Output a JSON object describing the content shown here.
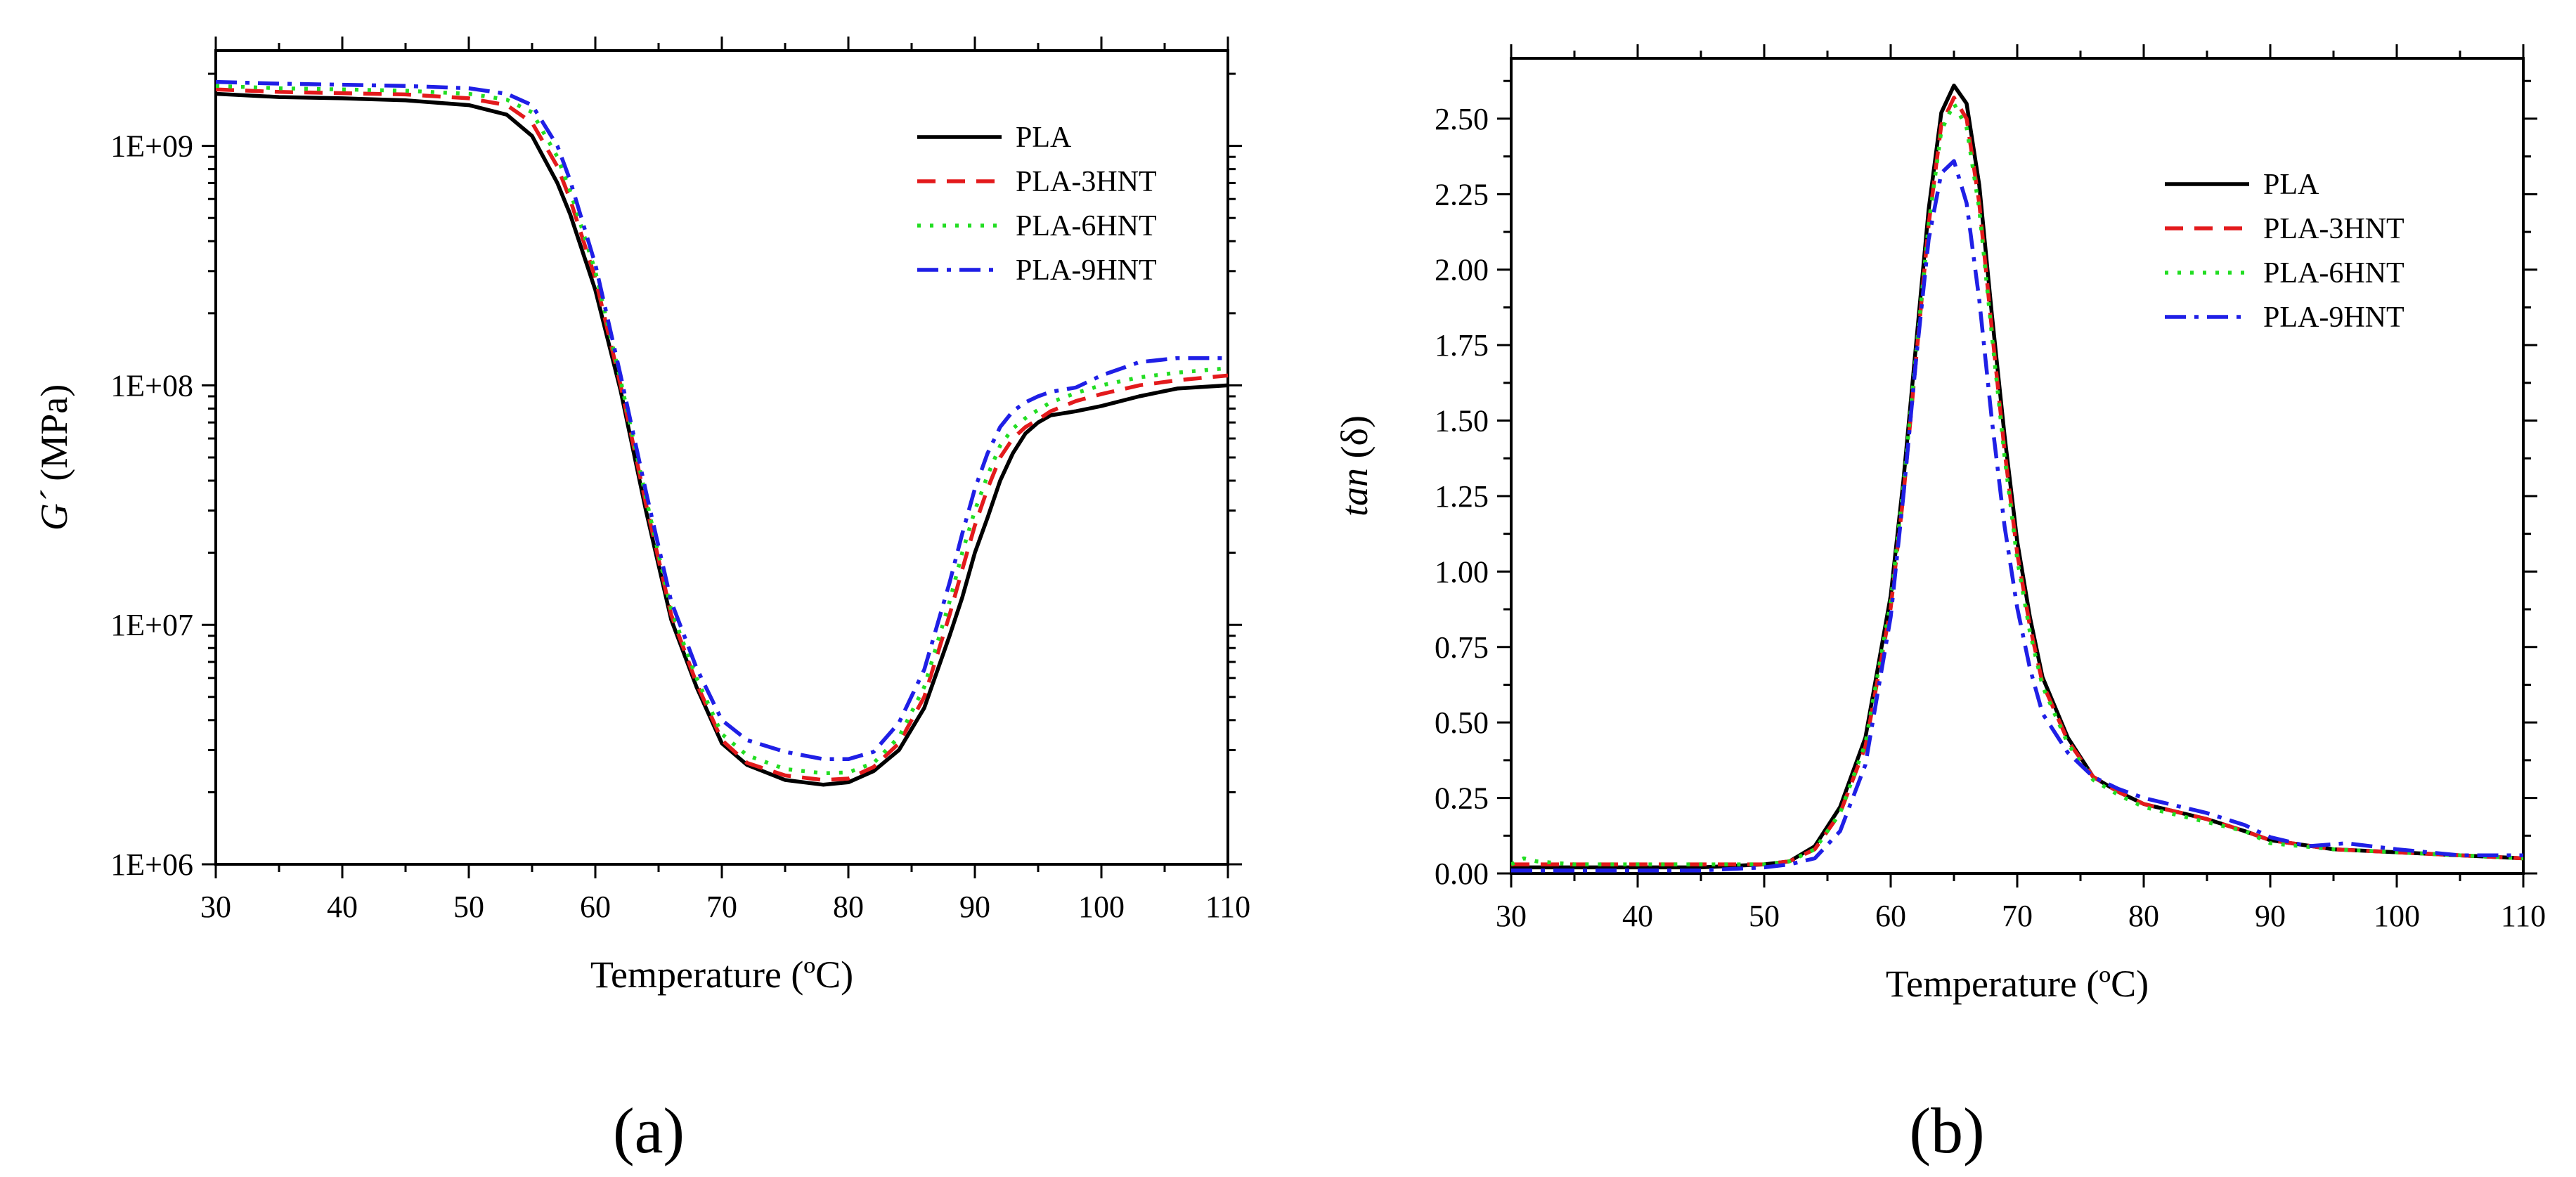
{
  "chart_data": [
    {
      "type": "line",
      "panel_label": "(a)",
      "xlabel": "Temperature (ºC)",
      "ylabel_prefix": "G´",
      "ylabel_suffix": " (MPa)",
      "yscale": "log",
      "xlim": [
        30,
        110
      ],
      "ylim": [
        1000000,
        2500000000
      ],
      "xticks": [
        30,
        40,
        50,
        60,
        70,
        80,
        90,
        100,
        110
      ],
      "yticks": [
        1000000,
        10000000,
        100000000,
        1000000000
      ],
      "ytick_labels": [
        "1E+06",
        "1E+07",
        "1E+08",
        "1E+09"
      ],
      "legend_position": "top-right",
      "series": [
        {
          "name": "PLA",
          "color": "#000000",
          "dash": "solid",
          "x": [
            30,
            35,
            40,
            45,
            50,
            53,
            55,
            57,
            58,
            60,
            62,
            64,
            66,
            68,
            70,
            72,
            75,
            78,
            80,
            82,
            84,
            86,
            88,
            89,
            90,
            91,
            92,
            93,
            94,
            95,
            96,
            98,
            100,
            103,
            106,
            110
          ],
          "y": [
            1650000000,
            1600000000,
            1580000000,
            1550000000,
            1480000000,
            1350000000,
            1100000000,
            700000000,
            520000000,
            250000000,
            95000000,
            30000000,
            10500000,
            5500000,
            3200000,
            2600000,
            2250000,
            2150000,
            2200000,
            2450000,
            3000000,
            4500000,
            9000000,
            13000000,
            20000000,
            28000000,
            40000000,
            52000000,
            63000000,
            70000000,
            75000000,
            78000000,
            82000000,
            90000000,
            97000000,
            100000000
          ]
        },
        {
          "name": "PLA-3HNT",
          "color": "#e31a1c",
          "dash": "dash",
          "x": [
            30,
            35,
            40,
            45,
            50,
            53,
            55,
            57,
            58,
            60,
            62,
            64,
            66,
            68,
            70,
            72,
            75,
            78,
            80,
            82,
            84,
            86,
            88,
            89,
            90,
            91,
            92,
            93,
            94,
            95,
            96,
            98,
            100,
            103,
            106,
            110
          ],
          "y": [
            1720000000,
            1680000000,
            1660000000,
            1640000000,
            1580000000,
            1480000000,
            1250000000,
            820000000,
            600000000,
            280000000,
            100000000,
            32000000,
            11000000,
            5700000,
            3300000,
            2650000,
            2350000,
            2250000,
            2280000,
            2550000,
            3200000,
            5000000,
            11000000,
            17000000,
            26000000,
            37000000,
            50000000,
            60000000,
            67000000,
            72000000,
            78000000,
            86000000,
            92000000,
            100000000,
            105000000,
            110000000
          ]
        },
        {
          "name": "PLA-6HNT",
          "color": "#22dd22",
          "dash": "dot",
          "x": [
            30,
            35,
            40,
            45,
            50,
            53,
            55,
            57,
            58,
            60,
            62,
            64,
            66,
            68,
            70,
            72,
            75,
            78,
            80,
            82,
            84,
            86,
            88,
            89,
            90,
            91,
            92,
            93,
            94,
            95,
            96,
            98,
            100,
            103,
            106,
            110
          ],
          "y": [
            1780000000,
            1740000000,
            1720000000,
            1700000000,
            1650000000,
            1560000000,
            1380000000,
            900000000,
            650000000,
            300000000,
            105000000,
            34000000,
            11500000,
            6000000,
            3500000,
            2850000,
            2500000,
            2400000,
            2420000,
            2650000,
            3400000,
            5500000,
            12500000,
            20000000,
            30000000,
            42000000,
            56000000,
            66000000,
            73000000,
            79000000,
            85000000,
            93000000,
            100000000,
            108000000,
            113000000,
            118000000
          ]
        },
        {
          "name": "PLA-9HNT",
          "color": "#1f1fe6",
          "dash": "dashdot",
          "x": [
            30,
            35,
            40,
            45,
            50,
            53,
            55,
            57,
            58,
            60,
            62,
            64,
            66,
            68,
            70,
            72,
            75,
            78,
            80,
            82,
            84,
            86,
            88,
            89,
            90,
            91,
            92,
            93,
            94,
            95,
            96,
            98,
            100,
            103,
            106,
            110
          ],
          "y": [
            1850000000,
            1820000000,
            1800000000,
            1780000000,
            1740000000,
            1650000000,
            1480000000,
            1000000000,
            720000000,
            320000000,
            110000000,
            36000000,
            12500000,
            6600000,
            4000000,
            3300000,
            2950000,
            2750000,
            2750000,
            2950000,
            3900000,
            6500000,
            15000000,
            24000000,
            37000000,
            52000000,
            67000000,
            78000000,
            85000000,
            90000000,
            94000000,
            98000000,
            110000000,
            125000000,
            130000000,
            130000000
          ]
        }
      ]
    },
    {
      "type": "line",
      "panel_label": "(b)",
      "xlabel": "Temperature (ºC)",
      "ylabel_prefix": "tan",
      "ylabel_suffix": " (δ)",
      "yscale": "linear",
      "xlim": [
        30,
        110
      ],
      "ylim": [
        0,
        2.7
      ],
      "xticks": [
        30,
        40,
        50,
        60,
        70,
        80,
        90,
        100,
        110
      ],
      "yticks": [
        0.0,
        0.25,
        0.5,
        0.75,
        1.0,
        1.25,
        1.5,
        1.75,
        2.0,
        2.25,
        2.5
      ],
      "ytick_labels": [
        "0.00",
        "0.25",
        "0.50",
        "0.75",
        "1.00",
        "1.25",
        "1.50",
        "1.75",
        "2.00",
        "2.25",
        "2.50"
      ],
      "legend_position": "top-right",
      "series": [
        {
          "name": "PLA",
          "color": "#000000",
          "dash": "solid",
          "x": [
            30,
            35,
            40,
            45,
            50,
            52,
            54,
            56,
            58,
            60,
            61,
            62,
            63,
            64,
            65,
            66,
            67,
            68,
            69,
            70,
            71,
            72,
            74,
            76,
            78,
            80,
            85,
            88,
            90,
            95,
            100,
            105,
            110
          ],
          "y": [
            0.02,
            0.02,
            0.02,
            0.02,
            0.03,
            0.04,
            0.09,
            0.22,
            0.45,
            0.92,
            1.3,
            1.75,
            2.2,
            2.52,
            2.61,
            2.55,
            2.28,
            1.85,
            1.45,
            1.1,
            0.85,
            0.65,
            0.45,
            0.32,
            0.27,
            0.23,
            0.18,
            0.14,
            0.11,
            0.08,
            0.07,
            0.06,
            0.05
          ]
        },
        {
          "name": "PLA-3HNT",
          "color": "#e31a1c",
          "dash": "dash",
          "x": [
            30,
            35,
            40,
            45,
            50,
            52,
            54,
            56,
            58,
            60,
            61,
            62,
            63,
            64,
            65,
            66,
            67,
            68,
            69,
            70,
            71,
            72,
            74,
            76,
            78,
            80,
            85,
            88,
            90,
            95,
            100,
            105,
            110
          ],
          "y": [
            0.03,
            0.03,
            0.03,
            0.03,
            0.03,
            0.04,
            0.08,
            0.2,
            0.42,
            0.88,
            1.25,
            1.7,
            2.15,
            2.48,
            2.57,
            2.5,
            2.22,
            1.8,
            1.4,
            1.06,
            0.82,
            0.63,
            0.44,
            0.32,
            0.27,
            0.23,
            0.18,
            0.14,
            0.11,
            0.08,
            0.07,
            0.06,
            0.05
          ]
        },
        {
          "name": "PLA-6HNT",
          "color": "#22dd22",
          "dash": "dot",
          "x": [
            30,
            31,
            32,
            35,
            40,
            45,
            50,
            52,
            54,
            56,
            58,
            60,
            61,
            62,
            63,
            64,
            65,
            66,
            67,
            68,
            69,
            70,
            71,
            72,
            74,
            76,
            78,
            80,
            85,
            88,
            90,
            95,
            100,
            105,
            110
          ],
          "y": [
            0.03,
            0.05,
            0.04,
            0.03,
            0.03,
            0.03,
            0.03,
            0.04,
            0.08,
            0.2,
            0.43,
            0.9,
            1.28,
            1.72,
            2.15,
            2.46,
            2.55,
            2.47,
            2.2,
            1.78,
            1.38,
            1.04,
            0.8,
            0.62,
            0.43,
            0.31,
            0.26,
            0.22,
            0.17,
            0.14,
            0.1,
            0.08,
            0.07,
            0.06,
            0.05
          ]
        },
        {
          "name": "PLA-9HNT",
          "color": "#1f1fe6",
          "dash": "dashdot",
          "x": [
            30,
            35,
            40,
            45,
            50,
            52,
            54,
            56,
            58,
            60,
            61,
            62,
            63,
            64,
            65,
            66,
            67,
            68,
            69,
            70,
            71,
            72,
            74,
            76,
            78,
            80,
            85,
            88,
            90,
            93,
            96,
            98,
            100,
            105,
            110
          ],
          "y": [
            0.01,
            0.01,
            0.01,
            0.01,
            0.02,
            0.03,
            0.05,
            0.14,
            0.36,
            0.85,
            1.25,
            1.7,
            2.1,
            2.32,
            2.36,
            2.22,
            1.9,
            1.5,
            1.15,
            0.88,
            0.68,
            0.53,
            0.4,
            0.32,
            0.28,
            0.25,
            0.2,
            0.16,
            0.12,
            0.09,
            0.1,
            0.09,
            0.08,
            0.06,
            0.06
          ]
        }
      ]
    }
  ]
}
